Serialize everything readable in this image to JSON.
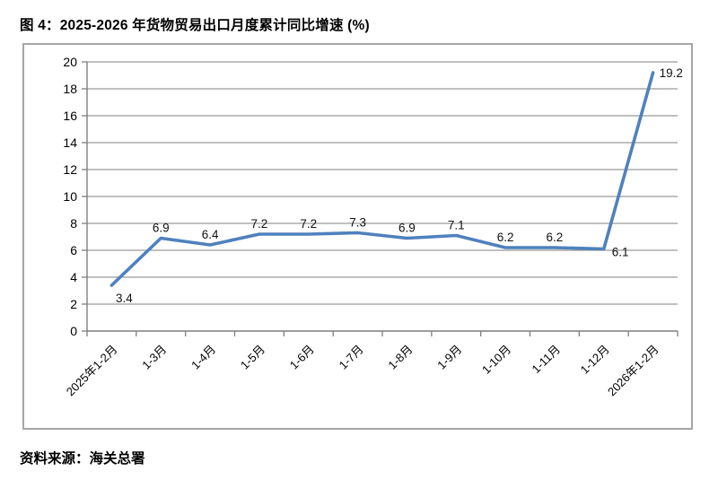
{
  "page": {
    "title": "图 4：2025-2026 年货物贸易出口月度累计同比增速 (%)",
    "source": "资料来源：海关总署"
  },
  "chart_data": {
    "type": "line",
    "title": "2025-2026 年货物贸易出口月度累计同比增速 (%)",
    "categories": [
      "2025年1-2月",
      "1-3月",
      "1-4月",
      "1-5月",
      "1-6月",
      "1-7月",
      "1-8月",
      "1-9月",
      "1-10月",
      "1-11月",
      "1-12月",
      "2026年1-2月"
    ],
    "values": [
      3.4,
      6.9,
      6.4,
      7.2,
      7.2,
      7.3,
      6.9,
      7.1,
      6.2,
      6.2,
      6.1,
      19.2
    ],
    "xlabel": "",
    "ylabel": "",
    "ylim": [
      0,
      20
    ],
    "ytick_step": 2,
    "grid": true,
    "legend": "none",
    "data_labels": true,
    "label_positions": [
      "below-right",
      "above",
      "above",
      "above",
      "above",
      "above",
      "above",
      "above",
      "above",
      "above",
      "right-below",
      "right"
    ],
    "line_color": "#4F81BD",
    "grid_color": "#9B9B9B",
    "axis_color": "#7F7F7F",
    "border_color": "#A6A6A6",
    "label_color": "#111111"
  }
}
